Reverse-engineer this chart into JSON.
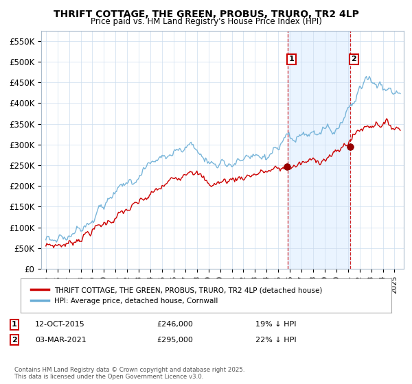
{
  "title": "THRIFT COTTAGE, THE GREEN, PROBUS, TRURO, TR2 4LP",
  "subtitle": "Price paid vs. HM Land Registry's House Price Index (HPI)",
  "hpi_color": "#6baed6",
  "price_color": "#cc0000",
  "marker_color": "#990000",
  "ylim": [
    0,
    575000
  ],
  "yticks": [
    0,
    50000,
    100000,
    150000,
    200000,
    250000,
    300000,
    350000,
    400000,
    450000,
    500000,
    550000
  ],
  "ytick_labels": [
    "£0",
    "£50K",
    "£100K",
    "£150K",
    "£200K",
    "£250K",
    "£300K",
    "£350K",
    "£400K",
    "£450K",
    "£500K",
    "£550K"
  ],
  "legend_items": [
    {
      "label": "THRIFT COTTAGE, THE GREEN, PROBUS, TRURO, TR2 4LP (detached house)",
      "color": "#cc0000",
      "lw": 2
    },
    {
      "label": "HPI: Average price, detached house, Cornwall",
      "color": "#6baed6",
      "lw": 2
    }
  ],
  "footnote": "Contains HM Land Registry data © Crown copyright and database right 2025.\nThis data is licensed under the Open Government Licence v3.0.",
  "sale1_year": 2015.79,
  "sale1_price": 246000,
  "sale2_year": 2021.17,
  "sale2_price": 295000,
  "vline_color": "#cc0000",
  "shade_color": "#ddeeff"
}
